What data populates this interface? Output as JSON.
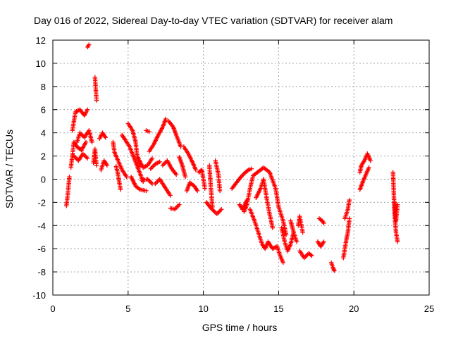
{
  "chart_data": {
    "type": "scatter",
    "title": "Day 016 of 2022, Sidereal Day-to-day VTEC variation (SDTVAR) for receiver alam",
    "xlabel": "GPS time / hours",
    "ylabel": "SDTVAR / TECUs",
    "xlim": [
      0,
      25
    ],
    "ylim": [
      -10,
      12
    ],
    "xticks": [
      0,
      5,
      10,
      15,
      20,
      25
    ],
    "yticks": [
      -10,
      -8,
      -6,
      -4,
      -2,
      0,
      2,
      4,
      6,
      8,
      10,
      12
    ],
    "grid": true,
    "marker": "+",
    "color": "#ff0000",
    "series": [
      {
        "name": "SDTVAR",
        "tracks": [
          [
            [
              0.9,
              -2.3
            ],
            [
              1.0,
              -1.2
            ],
            [
              1.1,
              0.2
            ]
          ],
          [
            [
              1.2,
              1.0
            ],
            [
              1.4,
              3.2
            ],
            [
              1.6,
              2.8
            ],
            [
              1.9,
              2.5
            ],
            [
              2.2,
              3.2
            ]
          ],
          [
            [
              1.3,
              4.2
            ],
            [
              1.5,
              5.8
            ],
            [
              1.8,
              6.0
            ],
            [
              2.1,
              5.5
            ],
            [
              2.3,
              6.0
            ]
          ],
          [
            [
              1.4,
              2.0
            ],
            [
              1.7,
              1.6
            ],
            [
              2.0,
              2.2
            ],
            [
              2.3,
              1.8
            ]
          ],
          [
            [
              1.6,
              3.2
            ],
            [
              1.8,
              4.0
            ],
            [
              2.1,
              3.6
            ],
            [
              2.4,
              4.2
            ],
            [
              2.6,
              3.2
            ]
          ],
          [
            [
              2.3,
              11.4
            ],
            [
              2.4,
              11.6
            ]
          ],
          [
            [
              2.8,
              8.8
            ],
            [
              2.85,
              7.8
            ],
            [
              2.9,
              6.8
            ]
          ],
          [
            [
              2.7,
              1.4
            ],
            [
              2.8,
              2.6
            ],
            [
              2.9,
              1.2
            ]
          ],
          [
            [
              3.2,
              0.8
            ],
            [
              3.4,
              1.6
            ],
            [
              3.6,
              1.2
            ]
          ],
          [
            [
              3.1,
              3.5
            ],
            [
              3.3,
              4.0
            ],
            [
              3.5,
              3.6
            ]
          ],
          [
            [
              4.0,
              3.2
            ],
            [
              4.1,
              2.3
            ],
            [
              4.3,
              1.7
            ],
            [
              4.6,
              0.8
            ],
            [
              4.9,
              0.2
            ]
          ],
          [
            [
              4.2,
              1.1
            ],
            [
              4.3,
              0.6
            ],
            [
              4.5,
              -0.9
            ]
          ],
          [
            [
              4.6,
              3.8
            ],
            [
              4.8,
              3.4
            ],
            [
              5.1,
              2.8
            ],
            [
              5.4,
              1.8
            ],
            [
              5.7,
              0.8
            ],
            [
              6.0,
              -0.2
            ]
          ],
          [
            [
              5.0,
              4.8
            ],
            [
              5.3,
              4.2
            ],
            [
              5.5,
              3.2
            ],
            [
              5.6,
              2.0
            ],
            [
              5.8,
              1.1
            ]
          ],
          [
            [
              5.2,
              0.2
            ],
            [
              5.5,
              -0.6
            ],
            [
              5.8,
              -0.9
            ],
            [
              6.2,
              -1.0
            ]
          ],
          [
            [
              5.6,
              2.0
            ],
            [
              6.0,
              1.0
            ],
            [
              6.3,
              1.2
            ],
            [
              6.6,
              1.8
            ]
          ],
          [
            [
              5.9,
              -0.1
            ],
            [
              6.3,
              0.0
            ],
            [
              6.6,
              -0.4
            ]
          ],
          [
            [
              6.4,
              2.4
            ],
            [
              6.7,
              3.0
            ],
            [
              7.0,
              3.8
            ],
            [
              7.3,
              4.5
            ],
            [
              7.5,
              5.2
            ]
          ],
          [
            [
              6.2,
              4.2
            ],
            [
              6.4,
              4.1
            ]
          ],
          [
            [
              6.5,
              0.9
            ],
            [
              6.8,
              1.3
            ],
            [
              7.1,
              1.5
            ]
          ],
          [
            [
              6.8,
              -0.4
            ],
            [
              7.1,
              0.0
            ],
            [
              7.4,
              -0.6
            ],
            [
              7.8,
              -1.4
            ]
          ],
          [
            [
              7.3,
              1.2
            ],
            [
              7.6,
              1.6
            ],
            [
              7.9,
              0.9
            ],
            [
              8.2,
              0.4
            ]
          ],
          [
            [
              7.7,
              5.0
            ],
            [
              8.0,
              4.5
            ],
            [
              8.2,
              3.8
            ],
            [
              8.5,
              2.8
            ]
          ],
          [
            [
              7.8,
              -2.5
            ],
            [
              8.1,
              -2.6
            ],
            [
              8.4,
              -2.2
            ]
          ],
          [
            [
              8.4,
              1.9
            ],
            [
              8.6,
              1.2
            ],
            [
              8.8,
              0.2
            ]
          ],
          [
            [
              8.9,
              -1.0
            ],
            [
              9.1,
              -0.3
            ],
            [
              9.4,
              -0.6
            ],
            [
              9.6,
              -1.0
            ]
          ],
          [
            [
              8.7,
              2.8
            ],
            [
              9.0,
              2.2
            ],
            [
              9.3,
              1.4
            ],
            [
              9.5,
              0.8
            ]
          ],
          [
            [
              9.7,
              0.6
            ],
            [
              9.9,
              0.8
            ],
            [
              10.1,
              -0.8
            ]
          ],
          [
            [
              10.2,
              -2.0
            ],
            [
              10.5,
              -2.5
            ],
            [
              10.9,
              -3.0
            ],
            [
              11.2,
              -2.6
            ]
          ],
          [
            [
              10.4,
              1.2
            ],
            [
              10.5,
              -0.8
            ],
            [
              10.6,
              -2.4
            ]
          ],
          [
            [
              10.8,
              1.6
            ],
            [
              11.0,
              0.4
            ],
            [
              11.1,
              -1.0
            ]
          ],
          [
            [
              11.9,
              -0.8
            ],
            [
              12.2,
              -0.3
            ],
            [
              12.5,
              0.2
            ]
          ],
          [
            [
              12.4,
              -2.2
            ],
            [
              12.6,
              -2.6
            ],
            [
              12.9,
              -1.8
            ]
          ],
          [
            [
              12.7,
              -2.8
            ],
            [
              12.9,
              -2.2
            ],
            [
              13.1,
              -0.8
            ],
            [
              13.3,
              0.3
            ],
            [
              13.6,
              0.6
            ],
            [
              14.0,
              1.0
            ],
            [
              14.4,
              0.6
            ],
            [
              14.8,
              -0.8
            ],
            [
              15.0,
              -2.4
            ],
            [
              15.3,
              -3.6
            ],
            [
              15.5,
              -4.8
            ]
          ],
          [
            [
              12.5,
              0.2
            ],
            [
              12.8,
              0.6
            ],
            [
              13.0,
              0.8
            ],
            [
              13.2,
              0.9
            ]
          ],
          [
            [
              13.1,
              -2.6
            ],
            [
              13.4,
              -3.6
            ],
            [
              13.7,
              -4.8
            ],
            [
              13.9,
              -5.6
            ],
            [
              14.1,
              -6.0
            ],
            [
              14.3,
              -5.4
            ],
            [
              14.6,
              -6.0
            ],
            [
              14.9,
              -5.8
            ],
            [
              15.1,
              -6.6
            ],
            [
              15.3,
              -7.2
            ]
          ],
          [
            [
              13.5,
              -1.6
            ],
            [
              13.8,
              -0.8
            ],
            [
              14.0,
              0.0
            ],
            [
              14.2,
              -1.6
            ],
            [
              14.4,
              -3.0
            ],
            [
              14.6,
              -4.2
            ]
          ],
          [
            [
              15.2,
              -4.2
            ],
            [
              15.4,
              -5.4
            ],
            [
              15.6,
              -6.2
            ],
            [
              15.8,
              -5.6
            ],
            [
              16.0,
              -4.6
            ]
          ],
          [
            [
              15.8,
              -3.6
            ],
            [
              16.0,
              -4.6
            ],
            [
              16.2,
              -5.4
            ]
          ],
          [
            [
              16.3,
              -4.0
            ],
            [
              16.4,
              -3.2
            ],
            [
              16.6,
              -4.6
            ]
          ],
          [
            [
              16.4,
              -6.2
            ],
            [
              16.7,
              -6.8
            ],
            [
              17.0,
              -6.4
            ],
            [
              17.2,
              -6.6
            ]
          ],
          [
            [
              17.7,
              -3.4
            ],
            [
              17.9,
              -3.6
            ],
            [
              18.0,
              -3.8
            ]
          ],
          [
            [
              17.6,
              -5.4
            ],
            [
              17.8,
              -5.8
            ],
            [
              18.0,
              -5.4
            ]
          ],
          [
            [
              18.5,
              -7.2
            ],
            [
              18.6,
              -7.6
            ],
            [
              18.7,
              -7.9
            ]
          ],
          [
            [
              19.3,
              -6.8
            ],
            [
              19.4,
              -6.0
            ],
            [
              19.5,
              -5.2
            ],
            [
              19.6,
              -4.6
            ],
            [
              19.7,
              -3.4
            ]
          ],
          [
            [
              19.4,
              -3.4
            ],
            [
              19.6,
              -2.6
            ],
            [
              19.7,
              -1.8
            ]
          ],
          [
            [
              20.4,
              0.6
            ],
            [
              20.5,
              1.2
            ],
            [
              20.7,
              1.6
            ],
            [
              20.9,
              2.2
            ],
            [
              21.1,
              1.6
            ]
          ],
          [
            [
              20.4,
              -0.9
            ],
            [
              20.6,
              -0.2
            ],
            [
              20.8,
              0.4
            ],
            [
              21.0,
              1.0
            ]
          ],
          [
            [
              22.6,
              0.6
            ],
            [
              22.65,
              -1.2
            ],
            [
              22.7,
              -3.0
            ],
            [
              22.8,
              -4.6
            ],
            [
              22.9,
              -5.4
            ]
          ],
          [
            [
              22.7,
              -2.0
            ],
            [
              22.8,
              -3.6
            ],
            [
              22.9,
              -2.2
            ]
          ]
        ]
      }
    ]
  }
}
